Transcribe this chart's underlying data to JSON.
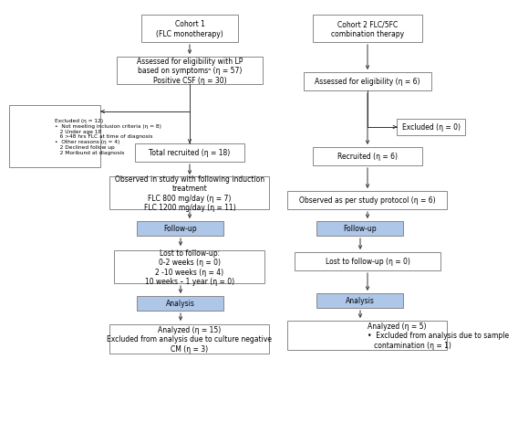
{
  "bg_color": "#ffffff",
  "box_edge_color": "#888888",
  "box_fill_white": "#ffffff",
  "box_fill_blue": "#aec6e8",
  "text_color": "#000000",
  "arrow_color": "#333333",
  "font_size": 5.5,
  "cohort1_title": "Cohort 1\n(FLC monotherapy)",
  "cohort2_title": "Cohort 2 FLC/5FC\ncombination therapy",
  "box1_text": "Assessed for eligibility with LP\nbased on symptomsᵃ (η = 57)\nPositive CSF (η = 30)",
  "excluded_box_text": "Excluded (η = 12)\n•  Not meeting inclusion criteria (η = 8)\n   2 Under age 18\n   6 >48 hrs FLC at time of diagnosis\n•  Other reasons (η = 4)\n   2 Declined follow up\n   2 Moribund at diagnosis",
  "box2_text": "Total recruited (η = 18)",
  "box3_text": "Observed in study with following induction\ntreatment\nFLC 800 mg/day (η = 7)\nFLC 1200 mg/day (η = 11)",
  "followup1_text": "Follow-up",
  "lost_followup1_text": "Lost to follow-up:\n0-2 weeks (η = 0)\n2 -10 weeks (η = 4)\n10 weeks – 1 year (η = 0)",
  "analysis1_text": "Analysis",
  "final1_text": "Analyzed (η = 15)\nExcluded from analysis due to culture negative\nCM (η = 3)",
  "c2_box1_text": "Assessed for eligibility (η = 6)",
  "c2_excluded_text": "Excluded (η = 0)",
  "c2_recruited_text": "Recruited (η = 6)",
  "c2_observed_text": "Observed as per study protocol (η = 6)",
  "c2_followup_text": "Follow-up",
  "c2_lost_text": "Lost to follow-up (η = 0)",
  "c2_analysis_text": "Analysis",
  "c2_final_text": "Analyzed (η = 5)\n•  Excluded from analysis due to sample\n   contamination (η = 1)"
}
